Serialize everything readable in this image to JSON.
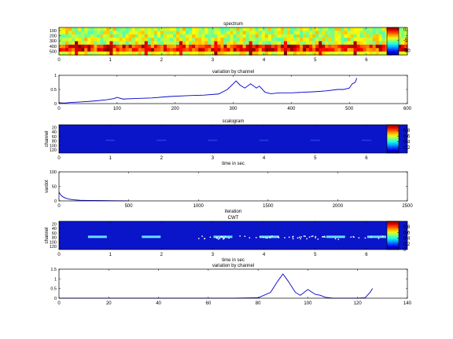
{
  "chart_data": [
    {
      "type": "heatmap",
      "title": "spectrum",
      "xlabel": "",
      "ylabel": "",
      "xlim": [
        0,
        6.8
      ],
      "ylim": [
        0,
        512
      ],
      "xticks": [
        "0",
        "1",
        "2",
        "3",
        "4",
        "5",
        "6"
      ],
      "yticks": [
        "100",
        "200",
        "300",
        "400",
        "500"
      ],
      "colorbar": {
        "ticks": [
          "0",
          "-5",
          "-10"
        ],
        "range": [
          -12,
          1
        ]
      },
      "colors": {
        "low": "#00aaff",
        "mid": "#ddff33",
        "high": "#ff2200"
      }
    },
    {
      "type": "line",
      "title": "variation by channel",
      "xlabel": "",
      "ylabel": "",
      "xlim": [
        0,
        600
      ],
      "ylim": [
        0,
        1
      ],
      "xticks": [
        "0",
        "100",
        "200",
        "300",
        "400",
        "500",
        "600"
      ],
      "yticks": [
        "0",
        "0.5",
        "1"
      ],
      "color": "#0000cc",
      "x": [
        0,
        10,
        20,
        40,
        60,
        80,
        95,
        100,
        110,
        130,
        160,
        190,
        220,
        250,
        275,
        290,
        300,
        305,
        312,
        320,
        330,
        340,
        345,
        355,
        365,
        380,
        400,
        420,
        440,
        460,
        480,
        490,
        500,
        505,
        510,
        513
      ],
      "y": [
        0.03,
        0.02,
        0.04,
        0.06,
        0.09,
        0.13,
        0.18,
        0.22,
        0.16,
        0.18,
        0.2,
        0.25,
        0.28,
        0.3,
        0.34,
        0.5,
        0.7,
        0.8,
        0.65,
        0.55,
        0.7,
        0.55,
        0.62,
        0.4,
        0.35,
        0.38,
        0.38,
        0.4,
        0.42,
        0.45,
        0.5,
        0.5,
        0.55,
        0.7,
        0.75,
        0.9
      ]
    },
    {
      "type": "heatmap",
      "title": "scalogram",
      "xlabel": "time in sec",
      "ylabel": "channel",
      "xlim": [
        0,
        6.8
      ],
      "ylim": [
        0,
        20
      ],
      "xticks": [
        "0",
        "1",
        "2",
        "3",
        "4",
        "5",
        "6"
      ],
      "yticks": [
        "20",
        "40",
        "60",
        "80",
        "100",
        "120"
      ],
      "colorbar": {
        "ticks": [
          "0.8",
          "0.6",
          "0.4",
          "0.2"
        ],
        "range": [
          0,
          1
        ]
      },
      "colors": {
        "background": "#0a14c8"
      }
    },
    {
      "type": "line",
      "title": "",
      "xlabel": "iteration",
      "ylabel": "vardot",
      "xlim": [
        0,
        2500
      ],
      "ylim": [
        0,
        100
      ],
      "xticks": [
        "0",
        "500",
        "1000",
        "1500",
        "2000",
        "2500"
      ],
      "yticks": [
        "0",
        "50",
        "100"
      ],
      "color": "#0000cc",
      "x": [
        0,
        10,
        25,
        50,
        75,
        100,
        150,
        200,
        300,
        400,
        500
      ],
      "y": [
        30,
        22,
        15,
        9,
        6,
        4,
        2,
        1.5,
        1,
        0.5,
        0.3
      ]
    },
    {
      "type": "heatmap",
      "title": "CWT",
      "xlabel": "time in sec",
      "ylabel": "channel",
      "xlim": [
        0,
        6.8
      ],
      "ylim": [
        0,
        20
      ],
      "xticks": [
        "0",
        "1",
        "2",
        "3",
        "4",
        "5",
        "6"
      ],
      "yticks": [
        "20",
        "40",
        "60",
        "80",
        "100",
        "120"
      ],
      "colorbar": {
        "ticks": [
          "0.8",
          "0.6",
          "0.4",
          "0.2",
          "0"
        ],
        "range": [
          0,
          1
        ]
      },
      "colors": {
        "background": "#0a14c8",
        "hot": "#66ddff"
      }
    },
    {
      "type": "line",
      "title": "variation by channel",
      "xlabel": "",
      "ylabel": "",
      "xlim": [
        0,
        140
      ],
      "ylim": [
        0,
        1.5
      ],
      "xticks": [
        "0",
        "20",
        "40",
        "60",
        "80",
        "100",
        "120",
        "140"
      ],
      "yticks": [
        "0",
        "0.5",
        "1",
        "1.5"
      ],
      "color": "#0000cc",
      "x": [
        0,
        70,
        80,
        85,
        88,
        90,
        92,
        95,
        97,
        100,
        103,
        105,
        107,
        110,
        120,
        123,
        125,
        126
      ],
      "y": [
        0,
        0,
        0.02,
        0.3,
        0.9,
        1.25,
        0.9,
        0.3,
        0.15,
        0.45,
        0.2,
        0.15,
        0.05,
        0,
        0,
        0.02,
        0.3,
        0.5
      ]
    }
  ]
}
